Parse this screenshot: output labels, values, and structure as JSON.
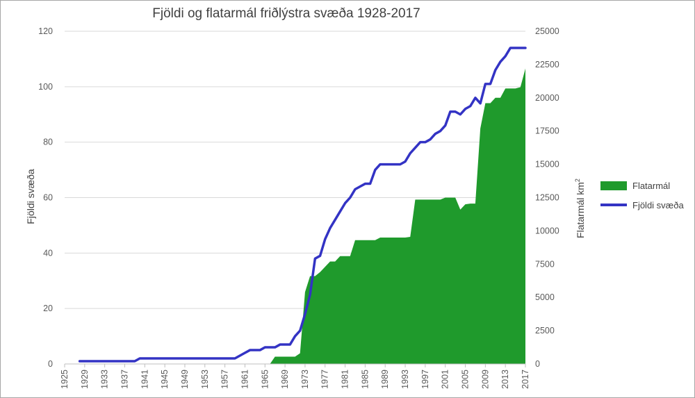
{
  "chart_data": {
    "type": "area+line",
    "title": "Fjöldi og flatarmál friðlýstra svæða 1928-2017",
    "ylabel_left": "Fjöldi svæða",
    "ylabel_right_main": "Flatarmál km",
    "ylabel_right_sup": "2",
    "ylim_left": [
      0,
      120
    ],
    "yticks_left": [
      0,
      20,
      40,
      60,
      80,
      100,
      120
    ],
    "ylim_right": [
      0,
      25000
    ],
    "yticks_right": [
      0,
      2500,
      5000,
      7500,
      10000,
      12500,
      15000,
      17500,
      20000,
      22500,
      25000
    ],
    "xlim": [
      1925,
      2017
    ],
    "xticks": [
      1925,
      1929,
      1933,
      1937,
      1941,
      1945,
      1949,
      1953,
      1957,
      1961,
      1965,
      1969,
      1973,
      1977,
      1981,
      1985,
      1989,
      1993,
      1997,
      2001,
      2005,
      2009,
      2013,
      2017
    ],
    "grid": true,
    "legend_position": "right",
    "series": [
      {
        "name": "Flatarmál",
        "type": "area",
        "axis": "right",
        "color": "#1f9a2c",
        "points": [
          [
            1966,
            0
          ],
          [
            1967,
            550
          ],
          [
            1968,
            550
          ],
          [
            1969,
            550
          ],
          [
            1970,
            550
          ],
          [
            1971,
            550
          ],
          [
            1972,
            800
          ],
          [
            1973,
            5400
          ],
          [
            1974,
            6600
          ],
          [
            1975,
            6600
          ],
          [
            1976,
            6900
          ],
          [
            1977,
            7300
          ],
          [
            1978,
            7700
          ],
          [
            1979,
            7700
          ],
          [
            1980,
            8100
          ],
          [
            1981,
            8100
          ],
          [
            1982,
            8100
          ],
          [
            1983,
            9300
          ],
          [
            1984,
            9300
          ],
          [
            1985,
            9300
          ],
          [
            1986,
            9300
          ],
          [
            1987,
            9300
          ],
          [
            1988,
            9500
          ],
          [
            1989,
            9500
          ],
          [
            1990,
            9500
          ],
          [
            1991,
            9500
          ],
          [
            1992,
            9500
          ],
          [
            1993,
            9500
          ],
          [
            1994,
            9550
          ],
          [
            1995,
            12350
          ],
          [
            1996,
            12350
          ],
          [
            1997,
            12350
          ],
          [
            1998,
            12350
          ],
          [
            1999,
            12350
          ],
          [
            2000,
            12350
          ],
          [
            2001,
            12500
          ],
          [
            2002,
            12500
          ],
          [
            2003,
            12500
          ],
          [
            2004,
            11600
          ],
          [
            2005,
            12000
          ],
          [
            2006,
            12050
          ],
          [
            2007,
            12050
          ],
          [
            2008,
            17700
          ],
          [
            2009,
            19600
          ],
          [
            2010,
            19600
          ],
          [
            2011,
            20000
          ],
          [
            2012,
            20000
          ],
          [
            2013,
            20700
          ],
          [
            2014,
            20700
          ],
          [
            2015,
            20700
          ],
          [
            2016,
            20800
          ],
          [
            2017,
            22200
          ]
        ]
      },
      {
        "name": "Fjöldi svæða",
        "type": "line",
        "axis": "left",
        "color": "#3333c4",
        "points": [
          [
            1928,
            1
          ],
          [
            1929,
            1
          ],
          [
            1930,
            1
          ],
          [
            1931,
            1
          ],
          [
            1932,
            1
          ],
          [
            1933,
            1
          ],
          [
            1934,
            1
          ],
          [
            1935,
            1
          ],
          [
            1936,
            1
          ],
          [
            1937,
            1
          ],
          [
            1938,
            1
          ],
          [
            1939,
            1
          ],
          [
            1940,
            2
          ],
          [
            1941,
            2
          ],
          [
            1942,
            2
          ],
          [
            1943,
            2
          ],
          [
            1944,
            2
          ],
          [
            1945,
            2
          ],
          [
            1946,
            2
          ],
          [
            1947,
            2
          ],
          [
            1948,
            2
          ],
          [
            1949,
            2
          ],
          [
            1950,
            2
          ],
          [
            1951,
            2
          ],
          [
            1952,
            2
          ],
          [
            1953,
            2
          ],
          [
            1954,
            2
          ],
          [
            1955,
            2
          ],
          [
            1956,
            2
          ],
          [
            1957,
            2
          ],
          [
            1958,
            2
          ],
          [
            1959,
            2
          ],
          [
            1960,
            3
          ],
          [
            1961,
            4
          ],
          [
            1962,
            5
          ],
          [
            1963,
            5
          ],
          [
            1964,
            5
          ],
          [
            1965,
            6
          ],
          [
            1966,
            6
          ],
          [
            1967,
            6
          ],
          [
            1968,
            7
          ],
          [
            1969,
            7
          ],
          [
            1970,
            7
          ],
          [
            1971,
            10
          ],
          [
            1972,
            12
          ],
          [
            1973,
            18
          ],
          [
            1974,
            25
          ],
          [
            1975,
            38
          ],
          [
            1976,
            39
          ],
          [
            1977,
            45
          ],
          [
            1978,
            49
          ],
          [
            1979,
            52
          ],
          [
            1980,
            55
          ],
          [
            1981,
            58
          ],
          [
            1982,
            60
          ],
          [
            1983,
            63
          ],
          [
            1984,
            64
          ],
          [
            1985,
            65
          ],
          [
            1986,
            65
          ],
          [
            1987,
            70
          ],
          [
            1988,
            72
          ],
          [
            1989,
            72
          ],
          [
            1990,
            72
          ],
          [
            1991,
            72
          ],
          [
            1992,
            72
          ],
          [
            1993,
            73
          ],
          [
            1994,
            76
          ],
          [
            1995,
            78
          ],
          [
            1996,
            80
          ],
          [
            1997,
            80
          ],
          [
            1998,
            81
          ],
          [
            1999,
            83
          ],
          [
            2000,
            84
          ],
          [
            2001,
            86
          ],
          [
            2002,
            91
          ],
          [
            2003,
            91
          ],
          [
            2004,
            90
          ],
          [
            2005,
            92
          ],
          [
            2006,
            93
          ],
          [
            2007,
            96
          ],
          [
            2008,
            94
          ],
          [
            2009,
            101
          ],
          [
            2010,
            101
          ],
          [
            2011,
            106
          ],
          [
            2012,
            109
          ],
          [
            2013,
            111
          ],
          [
            2014,
            114
          ],
          [
            2015,
            114
          ],
          [
            2016,
            114
          ],
          [
            2017,
            114
          ]
        ]
      }
    ]
  }
}
